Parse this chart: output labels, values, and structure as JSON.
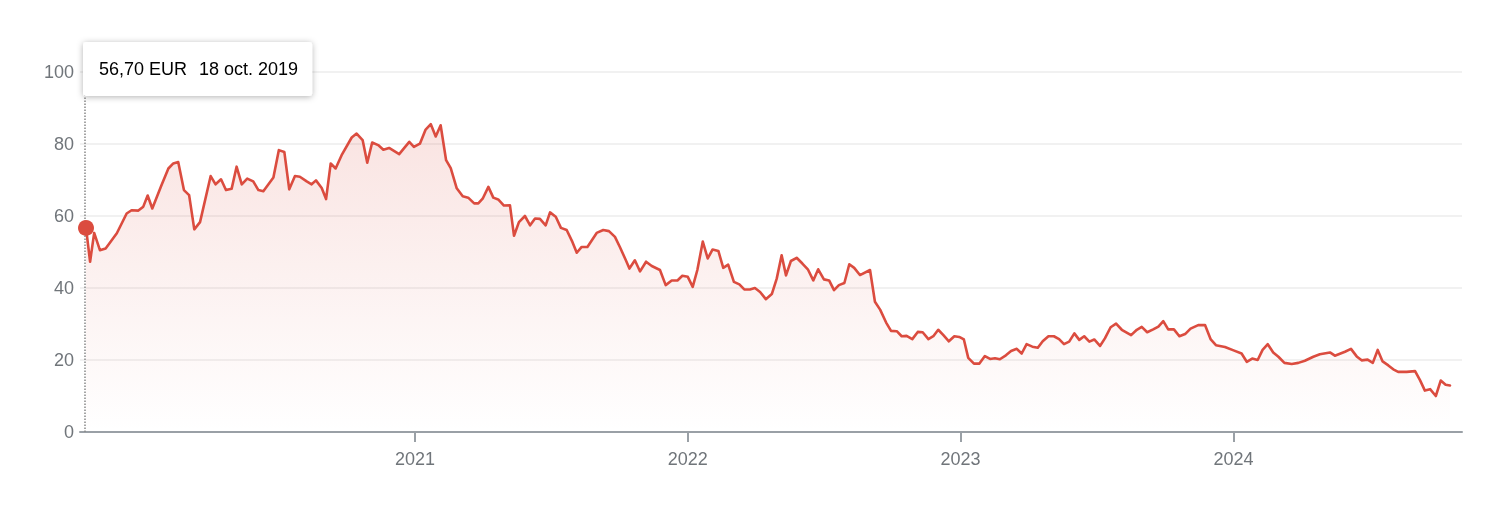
{
  "chart_data": {
    "type": "area",
    "x": [
      2019.794,
      2019.809,
      2019.824,
      2019.845,
      2019.866,
      2019.907,
      2019.943,
      2019.961,
      2019.986,
      2020.004,
      2020.02,
      2020.037,
      2020.071,
      2020.096,
      2020.114,
      2020.132,
      2020.153,
      2020.172,
      2020.191,
      2020.212,
      2020.251,
      2020.269,
      2020.289,
      2020.307,
      2020.328,
      2020.346,
      2020.365,
      2020.385,
      2020.407,
      2020.426,
      2020.444,
      2020.481,
      2020.501,
      2020.521,
      2020.539,
      2020.56,
      2020.578,
      2020.603,
      2020.621,
      2020.637,
      2020.658,
      2020.674,
      2020.691,
      2020.709,
      2020.731,
      2020.768,
      2020.786,
      2020.808,
      2020.825,
      2020.843,
      2020.865,
      2020.884,
      2020.905,
      2020.942,
      2020.979,
      2020.996,
      2021.018,
      2021.039,
      2021.058,
      2021.076,
      2021.094,
      2021.114,
      2021.131,
      2021.153,
      2021.175,
      2021.195,
      2021.217,
      2021.232,
      2021.248,
      2021.269,
      2021.287,
      2021.305,
      2021.326,
      2021.348,
      2021.363,
      2021.381,
      2021.403,
      2021.422,
      2021.44,
      2021.458,
      2021.479,
      2021.495,
      2021.516,
      2021.535,
      2021.556,
      2021.577,
      2021.593,
      2021.611,
      2021.632,
      2021.666,
      2021.69,
      2021.711,
      2021.733,
      2021.751,
      2021.773,
      2021.786,
      2021.806,
      2021.825,
      2021.847,
      2021.868,
      2021.898,
      2021.919,
      2021.941,
      2021.962,
      2021.98,
      2022.0,
      2022.018,
      2022.035,
      2022.055,
      2022.073,
      2022.091,
      2022.112,
      2022.13,
      2022.148,
      2022.169,
      2022.189,
      2022.207,
      2022.228,
      2022.246,
      2022.265,
      2022.286,
      2022.308,
      2022.326,
      2022.344,
      2022.36,
      2022.378,
      2022.399,
      2022.42,
      2022.44,
      2022.46,
      2022.478,
      2022.499,
      2022.518,
      2022.536,
      2022.554,
      2022.574,
      2022.592,
      2022.61,
      2022.631,
      2022.668,
      2022.686,
      2022.705,
      2022.727,
      2022.745,
      2022.766,
      2022.784,
      2022.802,
      2022.823,
      2022.843,
      2022.861,
      2022.882,
      2022.9,
      2022.918,
      2022.937,
      2022.957,
      2022.977,
      2022.995,
      2023.012,
      2023.028,
      2023.049,
      2023.069,
      2023.089,
      2023.108,
      2023.126,
      2023.144,
      2023.166,
      2023.185,
      2023.206,
      2023.224,
      2023.242,
      2023.263,
      2023.283,
      2023.301,
      2023.322,
      2023.342,
      2023.361,
      2023.379,
      2023.398,
      2023.417,
      2023.435,
      2023.453,
      2023.472,
      2023.49,
      2023.511,
      2023.529,
      2023.55,
      2023.57,
      2023.591,
      2023.625,
      2023.646,
      2023.664,
      2023.684,
      2023.706,
      2023.725,
      2023.743,
      2023.761,
      2023.782,
      2023.802,
      2023.823,
      2023.843,
      2023.871,
      2023.896,
      2023.917,
      2023.936,
      2023.969,
      2024.003,
      2024.03,
      2024.049,
      2024.069,
      2024.089,
      2024.107,
      2024.126,
      2024.146,
      2024.165,
      2024.187,
      2024.214,
      2024.238,
      2024.262,
      2024.293,
      2024.317,
      2024.354,
      2024.372,
      2024.409,
      2024.431,
      2024.452,
      2024.47,
      2024.492,
      2024.511,
      2024.529,
      2024.547,
      2024.568,
      2024.586,
      2024.604,
      2024.635,
      2024.666,
      2024.684,
      2024.702,
      2024.721,
      2024.742,
      2024.76,
      2024.778,
      2024.794
    ],
    "series": [
      {
        "color": "#db4c3f",
        "values": [
          56.7,
          47.3,
          55.3,
          50.5,
          51,
          55.2,
          60.7,
          61.6,
          61.5,
          62.6,
          65.7,
          62.1,
          68.6,
          73.2,
          74.6,
          75,
          67.2,
          65.8,
          56.3,
          58.3,
          71.1,
          68.8,
          70.2,
          67.2,
          67.6,
          73.7,
          68.8,
          70.4,
          69.6,
          67.2,
          66.9,
          70.7,
          78.3,
          77.8,
          67.4,
          71.1,
          70.9,
          69.6,
          68.8,
          69.9,
          67.8,
          64.7,
          74.6,
          73.2,
          76.9,
          81.8,
          82.9,
          81.1,
          74.8,
          80.4,
          79.7,
          78.4,
          78.9,
          77.2,
          80.6,
          79.2,
          80.1,
          84,
          85.5,
          82.1,
          85.2,
          75.5,
          73.3,
          67.7,
          65.5,
          65.1,
          63.5,
          63.5,
          64.8,
          68.1,
          65.1,
          64.6,
          62.9,
          63,
          54.5,
          58.3,
          60,
          57.4,
          59.3,
          59.2,
          57.4,
          61,
          59.8,
          56.7,
          56.1,
          52.8,
          49.8,
          51.4,
          51.4,
          55.3,
          56.1,
          55.8,
          54.2,
          51.4,
          47.7,
          45.4,
          47.7,
          44.6,
          47.3,
          46.1,
          45,
          40.8,
          42.1,
          42.1,
          43.4,
          43.1,
          40.3,
          45,
          52.9,
          48.2,
          50.7,
          50.3,
          45.6,
          46.5,
          41.7,
          41,
          39.6,
          39.6,
          40,
          38.9,
          36.9,
          38.3,
          42.6,
          49.1,
          43.5,
          47.5,
          48.4,
          46.8,
          45.2,
          42.1,
          45.2,
          42.4,
          42.1,
          39.4,
          40.8,
          41.4,
          46.6,
          45.6,
          43.6,
          45,
          36.2,
          34,
          30.4,
          28.1,
          28,
          26.6,
          26.7,
          25.8,
          27.8,
          27.7,
          25.8,
          26.6,
          28.4,
          26.9,
          25.2,
          26.6,
          26.4,
          25.7,
          20.6,
          19,
          19,
          21.1,
          20.3,
          20.5,
          20.2,
          21.3,
          22.5,
          23.1,
          21.8,
          24.4,
          23.7,
          23.4,
          25.2,
          26.6,
          26.6,
          25.8,
          24.4,
          25.1,
          27.4,
          25.6,
          26.6,
          25.1,
          25.7,
          23.9,
          26,
          29.1,
          30.1,
          28.4,
          26.9,
          28.4,
          29.2,
          27.7,
          28.5,
          29.3,
          30.8,
          28.5,
          28.5,
          26.6,
          27.2,
          28.7,
          29.7,
          29.7,
          25.7,
          24.1,
          23.6,
          22.6,
          21.8,
          19.5,
          20.4,
          20,
          22.8,
          24.4,
          22.1,
          20.9,
          19.2,
          18.9,
          19.2,
          19.8,
          20.9,
          21.6,
          22.1,
          21.2,
          22.3,
          23.1,
          21,
          19.9,
          20.1,
          19.2,
          22.8,
          19.6,
          18.5,
          17.4,
          16.7,
          16.7,
          16.9,
          14.4,
          11.5,
          11.9,
          10,
          14.3,
          13.1,
          12.9
        ]
      }
    ],
    "xlim": [
      2019.772,
      2024.838
    ],
    "xticks": [
      2021,
      2022,
      2023,
      2024
    ],
    "ylim": [
      0,
      100
    ],
    "yticks": [
      0,
      20,
      40,
      60,
      80,
      100
    ],
    "grid": "y",
    "marker": "none",
    "ref_lines": [
      {
        "axis": "x",
        "value": 2019.794,
        "color": "#888888",
        "line_style": "dotted"
      }
    ],
    "annotations": [
      "56,70 EUR",
      "18 oct. 2019"
    ]
  }
}
